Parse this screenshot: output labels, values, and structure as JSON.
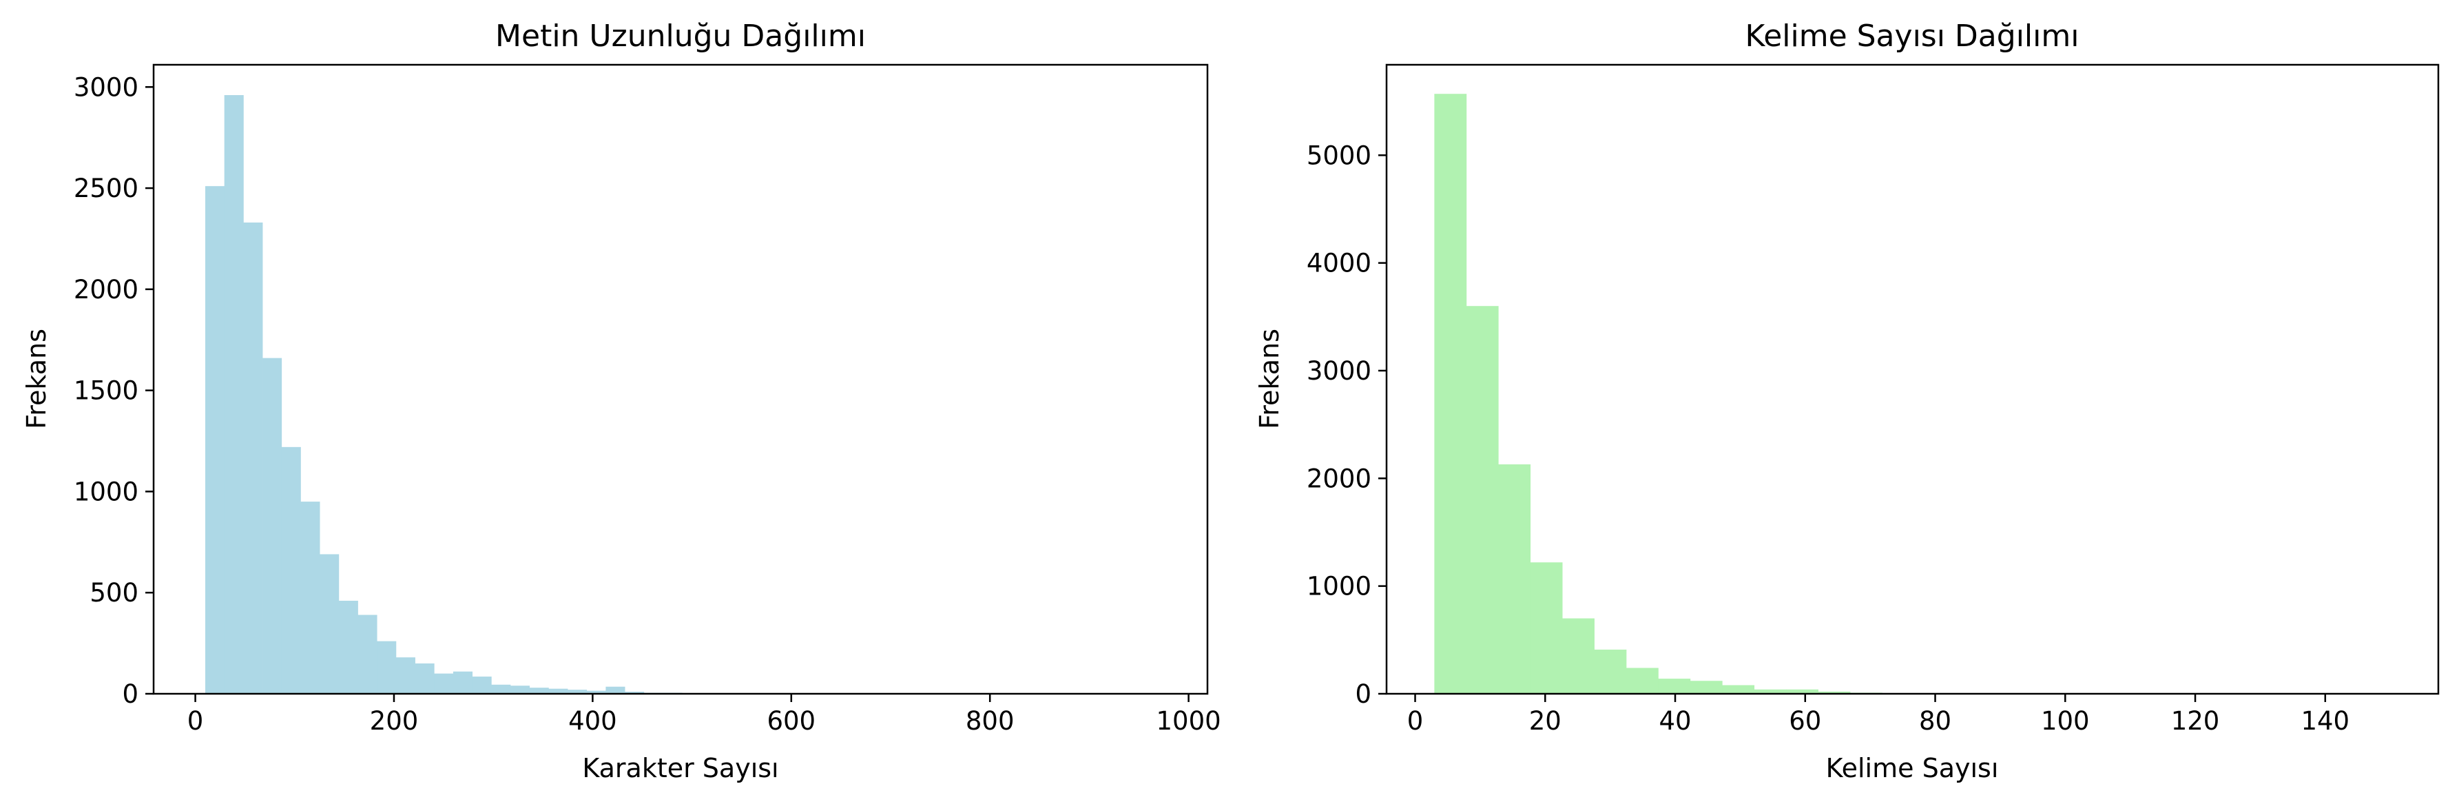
{
  "chart_data": [
    {
      "type": "bar",
      "title": "Metin Uzunluğu Dağılımı",
      "xlabel": "Karakter Sayısı",
      "ylabel": "Frekans",
      "color": "#add8e6",
      "xlim": [
        -42,
        1019
      ],
      "ylim": [
        0,
        3110
      ],
      "xticks": [
        0,
        200,
        400,
        600,
        800,
        1000
      ],
      "yticks": [
        0,
        500,
        1000,
        1500,
        2000,
        2500,
        3000
      ],
      "grid": false,
      "legend": "none",
      "bin_edges": [
        10,
        29.2,
        48.4,
        67.6,
        86.8,
        106,
        125.2,
        144.4,
        163.6,
        182.8,
        202,
        221.2,
        240.4,
        259.6,
        278.8,
        298,
        317.2,
        336.4,
        355.6,
        374.8,
        394,
        413.2,
        432.4,
        451.6,
        470.8,
        490,
        509.2,
        528.4,
        547.6,
        566.8,
        586,
        605.2,
        624.4,
        643.6,
        662.8,
        682,
        701.2,
        720.4,
        739.6,
        758.8,
        778,
        797.2,
        816.4,
        835.6,
        854.8,
        874,
        893.2,
        912.4,
        931.6,
        950.8,
        970
      ],
      "values": [
        2510,
        2960,
        2330,
        1660,
        1220,
        950,
        690,
        460,
        390,
        260,
        180,
        150,
        100,
        110,
        85,
        45,
        40,
        30,
        25,
        20,
        15,
        35,
        10,
        5,
        5,
        3,
        3,
        2,
        2,
        1,
        1,
        1,
        1,
        0,
        0,
        0,
        0,
        0,
        0,
        0,
        0,
        0,
        0,
        0,
        0,
        0,
        0,
        0,
        0,
        1
      ]
    },
    {
      "type": "bar",
      "title": "Kelime Sayısı Dağılımı",
      "xlabel": "Kelime Sayısı",
      "ylabel": "Frekans",
      "color": "#b1f2b1",
      "xlim": [
        -4.4,
        157.4
      ],
      "ylim": [
        0,
        5840
      ],
      "xticks": [
        0,
        20,
        40,
        60,
        80,
        100,
        120,
        140
      ],
      "yticks": [
        0,
        1000,
        2000,
        3000,
        4000,
        5000
      ],
      "grid": false,
      "legend": "none",
      "bin_edges": [
        2.95,
        7.87,
        12.79,
        17.71,
        22.63,
        27.55,
        32.47,
        37.39,
        42.31,
        47.23,
        52.15,
        57.07,
        61.99,
        66.91,
        71.83,
        76.75,
        81.67,
        86.59,
        91.51,
        96.43,
        101.35,
        106.27,
        111.19,
        116.11,
        121.03,
        125.95,
        130.87,
        135.79,
        140.71,
        145.63,
        150.55
      ],
      "values": [
        5570,
        3600,
        2130,
        1220,
        700,
        410,
        240,
        140,
        120,
        80,
        40,
        40,
        20,
        10,
        5,
        3,
        2,
        2,
        1,
        1,
        1,
        0,
        0,
        0,
        0,
        0,
        0,
        0,
        0,
        1
      ]
    }
  ]
}
